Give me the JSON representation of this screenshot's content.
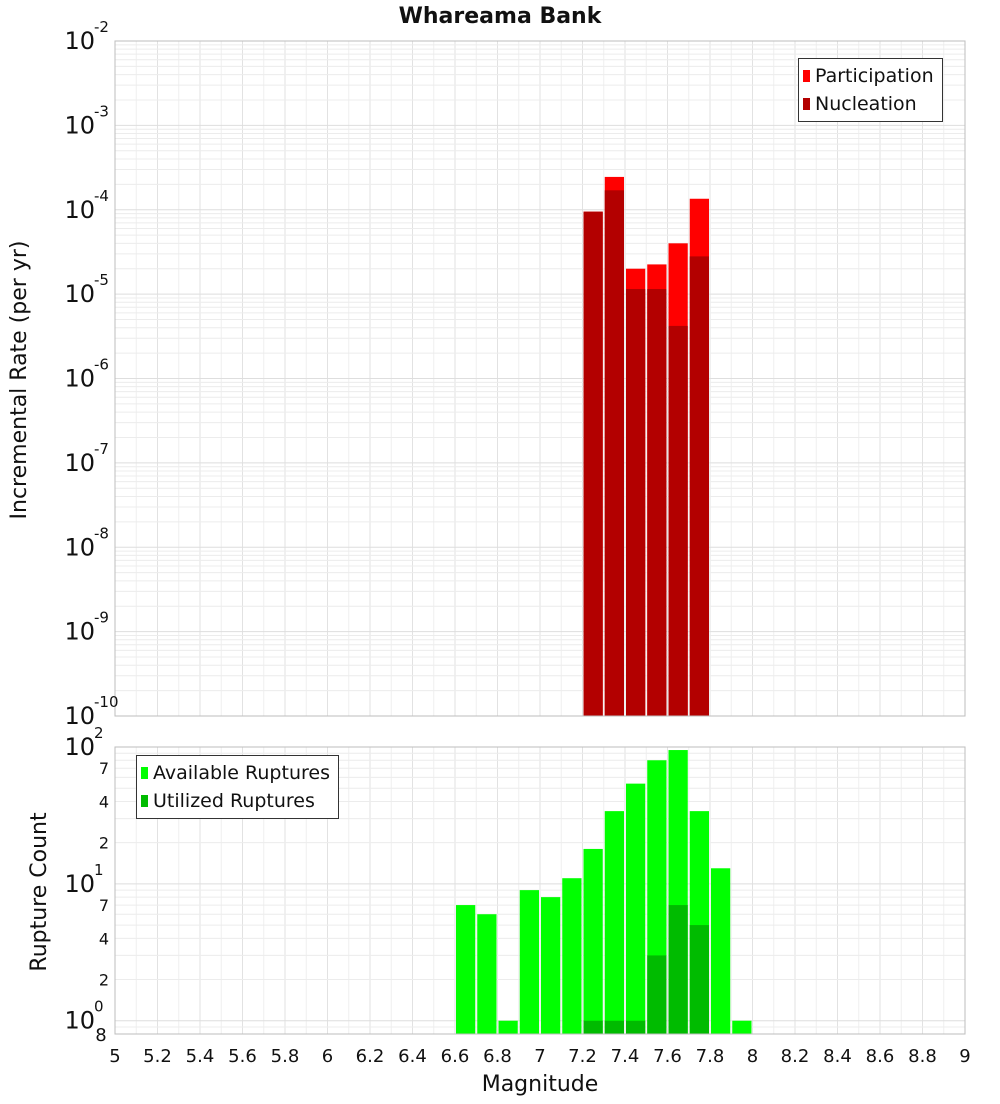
{
  "chart_data": [
    {
      "type": "bar",
      "title": "Whareama Bank",
      "xlabel": "",
      "ylabel": "Incremental Rate (per yr)",
      "yscale": "log",
      "xlim": [
        5,
        9
      ],
      "ylim": [
        1e-10,
        0.01
      ],
      "y_tick_labels": [
        {
          "base": "10",
          "exp": "-10",
          "value": 1e-10
        },
        {
          "base": "10",
          "exp": "-9",
          "value": 1e-09
        },
        {
          "base": "10",
          "exp": "-8",
          "value": 1e-08
        },
        {
          "base": "10",
          "exp": "-7",
          "value": 1e-07
        },
        {
          "base": "10",
          "exp": "-6",
          "value": 1e-06
        },
        {
          "base": "10",
          "exp": "-5",
          "value": 1e-05
        },
        {
          "base": "10",
          "exp": "-4",
          "value": 0.0001
        },
        {
          "base": "10",
          "exp": "-3",
          "value": 0.001
        },
        {
          "base": "10",
          "exp": "-2",
          "value": 0.01
        }
      ],
      "bin_width": 0.1,
      "grid": true,
      "legend_position": "top-right",
      "series": [
        {
          "name": "Participation",
          "color": "#ff0000",
          "x": [
            7.25,
            7.35,
            7.45,
            7.55,
            7.65,
            7.75
          ],
          "values": [
            9.5e-05,
            0.000245,
            2e-05,
            2.25e-05,
            4e-05,
            0.000135
          ]
        },
        {
          "name": "Nucleation",
          "color": "#b30000",
          "x": [
            7.25,
            7.35,
            7.45,
            7.55,
            7.65,
            7.75
          ],
          "values": [
            9.5e-05,
            0.00017,
            1.15e-05,
            1.15e-05,
            4.2e-06,
            2.8e-05
          ]
        }
      ]
    },
    {
      "type": "bar",
      "title": "",
      "xlabel": "Magnitude",
      "ylabel": "Rupture Count",
      "yscale": "log",
      "xlim": [
        5,
        9
      ],
      "ylim": [
        0.8,
        100
      ],
      "x_ticks": [
        "5",
        "5.2",
        "5.4",
        "5.6",
        "5.8",
        "6",
        "6.2",
        "6.4",
        "6.6",
        "6.8",
        "7",
        "7.2",
        "7.4",
        "7.6",
        "7.8",
        "8",
        "8.2",
        "8.4",
        "8.6",
        "8.8",
        "9"
      ],
      "y_tick_labels": [
        {
          "base": "10",
          "exp": "0",
          "value": 1
        },
        {
          "base": "",
          "exp": "2",
          "value": 2
        },
        {
          "base": "",
          "exp": "4",
          "value": 4
        },
        {
          "base": "",
          "exp": "7",
          "value": 7
        },
        {
          "base": "10",
          "exp": "1",
          "value": 10
        },
        {
          "base": "",
          "exp": "2",
          "value": 20
        },
        {
          "base": "",
          "exp": "4",
          "value": 40
        },
        {
          "base": "",
          "exp": "7",
          "value": 70
        },
        {
          "base": "10",
          "exp": "2",
          "value": 100
        }
      ],
      "y_min_label": "8",
      "bin_width": 0.1,
      "grid": true,
      "legend_position": "top-left",
      "series": [
        {
          "name": "Available Ruptures",
          "color": "#00ff00",
          "x": [
            6.65,
            6.75,
            6.85,
            6.95,
            7.05,
            7.15,
            7.25,
            7.35,
            7.45,
            7.55,
            7.65,
            7.75,
            7.85,
            7.95
          ],
          "values": [
            7,
            6,
            1,
            9,
            8,
            11,
            18,
            34,
            54,
            80,
            95,
            34,
            13,
            1
          ]
        },
        {
          "name": "Utilized Ruptures",
          "color": "#00bb00",
          "x": [
            7.25,
            7.35,
            7.45,
            7.55,
            7.65,
            7.75
          ],
          "values": [
            1,
            1,
            1,
            3,
            7,
            5
          ]
        }
      ]
    }
  ]
}
